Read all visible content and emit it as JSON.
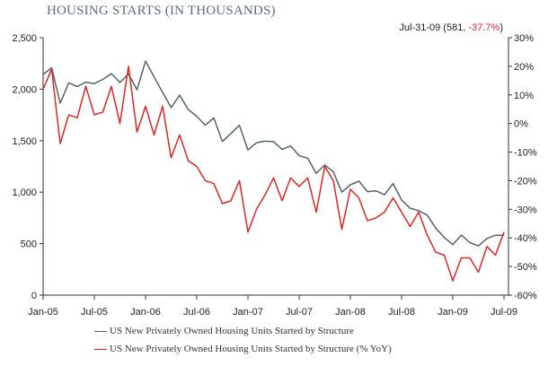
{
  "chart_data": {
    "type": "line",
    "title": "HOUSING STARTS (IN THOUSANDS)",
    "annotation": {
      "date": "Jul-31-09",
      "value": "581",
      "pct": "-37.7%"
    },
    "x_tick_labels": [
      "Jan-05",
      "Jul-05",
      "Jan-06",
      "Jul-06",
      "Jan-07",
      "Jul-07",
      "Jan-08",
      "Jul-08",
      "Jan-09",
      "Jul-09"
    ],
    "x_start": "Jan-05",
    "x_end": "Jul-09",
    "frequency": "monthly",
    "y_left": {
      "lim": [
        0,
        2500
      ],
      "ticks": [
        0,
        500,
        1000,
        1500,
        2000,
        2500
      ],
      "tick_labels": [
        "0",
        "500",
        "1,000",
        "1,500",
        "2,000",
        "2,500"
      ]
    },
    "y_right": {
      "lim": [
        -60,
        30
      ],
      "ticks": [
        -60,
        -50,
        -40,
        -30,
        -20,
        -10,
        0,
        10,
        20,
        30
      ],
      "tick_labels": [
        "-60%",
        "-50%",
        "-40%",
        "-30%",
        "-20%",
        "-10%",
        "0%",
        "10%",
        "20%",
        "30%"
      ]
    },
    "grid": false,
    "legend_position": "bottom",
    "series": [
      {
        "name": "US New Privately Owned Housing Units Started by Structure",
        "axis": "left",
        "color": "#56646a",
        "values": [
          2144,
          2207,
          1864,
          2061,
          2025,
          2068,
          2054,
          2095,
          2151,
          2065,
          2147,
          1994,
          2273,
          2119,
          1969,
          1821,
          1942,
          1802,
          1737,
          1650,
          1720,
          1491,
          1570,
          1649,
          1409,
          1480,
          1495,
          1490,
          1415,
          1448,
          1354,
          1330,
          1183,
          1264,
          1197,
          1000,
          1071,
          1107,
          1005,
          1013,
          975,
          1084,
          923,
          844,
          820,
          777,
          652,
          560,
          490,
          583,
          510,
          478,
          550,
          582,
          581
        ]
      },
      {
        "name": "US New Privately Owned Housing Units Started by Structure (% YoY)",
        "axis": "right",
        "color": "#d42a2a",
        "values": [
          12,
          19,
          -7,
          3,
          2,
          13,
          3,
          4,
          13,
          0,
          20,
          -3,
          6,
          -4,
          6,
          -12,
          -4,
          -13,
          -15,
          -20,
          -21,
          -28,
          -27,
          -20,
          -38,
          -30,
          -25,
          -19,
          -27,
          -19,
          -22,
          -19,
          -31,
          -15,
          -20,
          -37,
          -23,
          -26,
          -34,
          -33,
          -31,
          -26,
          -31,
          -36,
          -31,
          -39,
          -45,
          -46,
          -55,
          -47,
          -47,
          -52,
          -43,
          -46,
          -38
        ]
      }
    ]
  }
}
